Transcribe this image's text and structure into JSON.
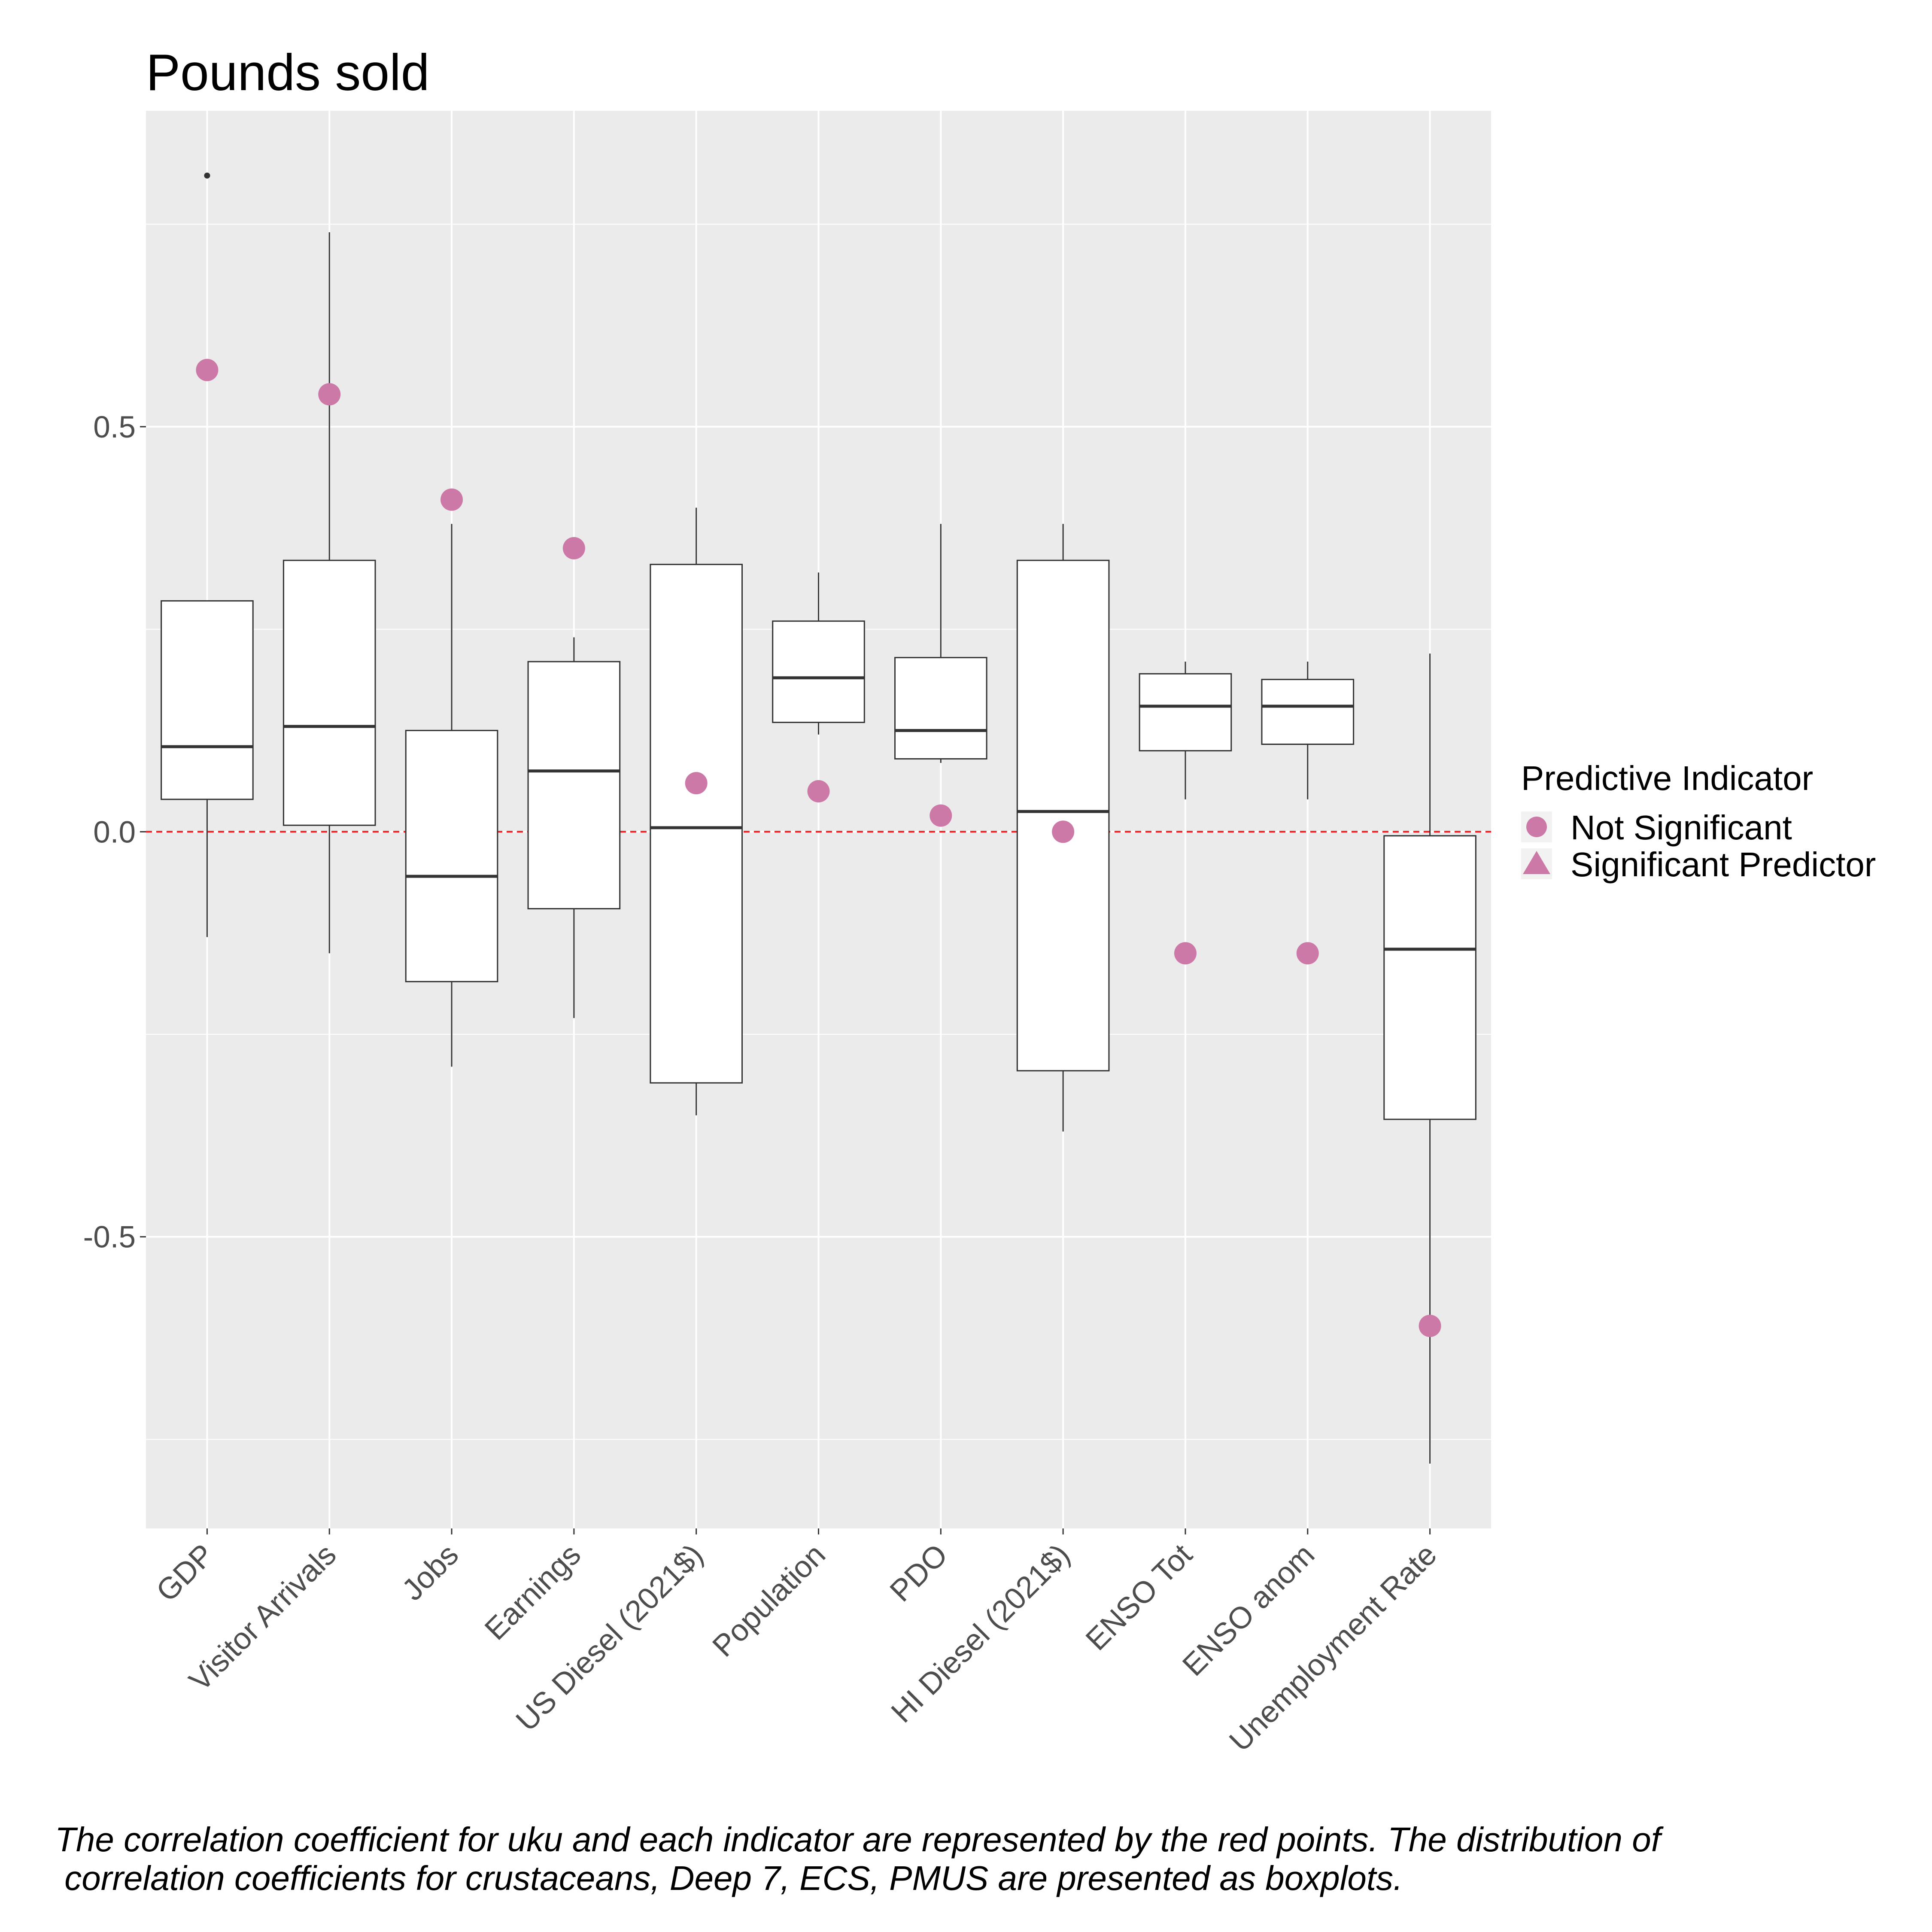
{
  "chart_data": {
    "type": "box",
    "title": "Pounds sold",
    "xlabel": "",
    "ylabel": "",
    "ylim": [
      -0.86,
      0.89
    ],
    "yticks": [
      -0.5,
      0.0,
      0.5
    ],
    "ytick_labels": [
      "-0.5",
      "0.0",
      "0.5"
    ],
    "reference_line": {
      "y": 0.0,
      "style": "dashed",
      "color": "#ee2222"
    },
    "categories": [
      "GDP",
      "Visitor Arrivals",
      "Jobs",
      "Earnings",
      "US Diesel (2021$)",
      "Population",
      "PDO",
      "HI Diesel (2021$)",
      "ENSO Tot",
      "ENSO anom",
      "Unemployment Rate"
    ],
    "boxes": [
      {
        "category": "GDP",
        "whisker_low": -0.13,
        "q1": 0.04,
        "median": 0.105,
        "q3": 0.285,
        "whisker_high": 0.285,
        "outliers": [
          0.81
        ]
      },
      {
        "category": "Visitor Arrivals",
        "whisker_low": -0.15,
        "q1": 0.008,
        "median": 0.13,
        "q3": 0.335,
        "whisker_high": 0.74,
        "outliers": []
      },
      {
        "category": "Jobs",
        "whisker_low": -0.29,
        "q1": -0.185,
        "median": -0.055,
        "q3": 0.125,
        "whisker_high": 0.38,
        "outliers": []
      },
      {
        "category": "Earnings",
        "whisker_low": -0.23,
        "q1": -0.095,
        "median": 0.075,
        "q3": 0.21,
        "whisker_high": 0.24,
        "outliers": []
      },
      {
        "category": "US Diesel (2021$)",
        "whisker_low": -0.35,
        "q1": -0.31,
        "median": 0.005,
        "q3": 0.33,
        "whisker_high": 0.4,
        "outliers": []
      },
      {
        "category": "Population",
        "whisker_low": 0.12,
        "q1": 0.135,
        "median": 0.19,
        "q3": 0.26,
        "whisker_high": 0.32,
        "outliers": []
      },
      {
        "category": "PDO",
        "whisker_low": 0.085,
        "q1": 0.09,
        "median": 0.125,
        "q3": 0.215,
        "whisker_high": 0.38,
        "outliers": []
      },
      {
        "category": "HI Diesel (2021$)",
        "whisker_low": -0.37,
        "q1": -0.295,
        "median": 0.025,
        "q3": 0.335,
        "whisker_high": 0.38,
        "outliers": []
      },
      {
        "category": "ENSO Tot",
        "whisker_low": 0.04,
        "q1": 0.1,
        "median": 0.155,
        "q3": 0.195,
        "whisker_high": 0.21,
        "outliers": []
      },
      {
        "category": "ENSO anom",
        "whisker_low": 0.04,
        "q1": 0.108,
        "median": 0.155,
        "q3": 0.188,
        "whisker_high": 0.21,
        "outliers": []
      },
      {
        "category": "Unemployment Rate",
        "whisker_low": -0.78,
        "q1": -0.355,
        "median": -0.145,
        "q3": -0.005,
        "whisker_high": 0.22,
        "outliers": []
      }
    ],
    "points": [
      {
        "category": "GDP",
        "value": 0.57,
        "group": "Not Significant"
      },
      {
        "category": "Visitor Arrivals",
        "value": 0.54,
        "group": "Not Significant"
      },
      {
        "category": "Jobs",
        "value": 0.41,
        "group": "Not Significant"
      },
      {
        "category": "Earnings",
        "value": 0.35,
        "group": "Not Significant"
      },
      {
        "category": "US Diesel (2021$)",
        "value": 0.06,
        "group": "Not Significant"
      },
      {
        "category": "Population",
        "value": 0.05,
        "group": "Not Significant"
      },
      {
        "category": "PDO",
        "value": 0.02,
        "group": "Not Significant"
      },
      {
        "category": "HI Diesel (2021$)",
        "value": 0.0,
        "group": "Not Significant"
      },
      {
        "category": "ENSO Tot",
        "value": -0.15,
        "group": "Not Significant"
      },
      {
        "category": "ENSO anom",
        "value": -0.15,
        "group": "Not Significant"
      },
      {
        "category": "Unemployment Rate",
        "value": -0.61,
        "group": "Not Significant"
      }
    ],
    "legend": {
      "title": "Predictive Indicator",
      "position": "right",
      "entries": [
        {
          "label": "Not Significant",
          "shape": "circle"
        },
        {
          "label": "Significant Predictor",
          "shape": "triangle"
        }
      ]
    },
    "point_color": "#cc79a7",
    "panel_background": "#ebebeb",
    "grid": true,
    "caption_lines": [
      "The correlation coefficient for uku and each indicator are represented by the red points. The distribution of",
      " correlation coefficients for crustaceans, Deep 7, ECS, PMUS are presented as boxplots."
    ]
  }
}
